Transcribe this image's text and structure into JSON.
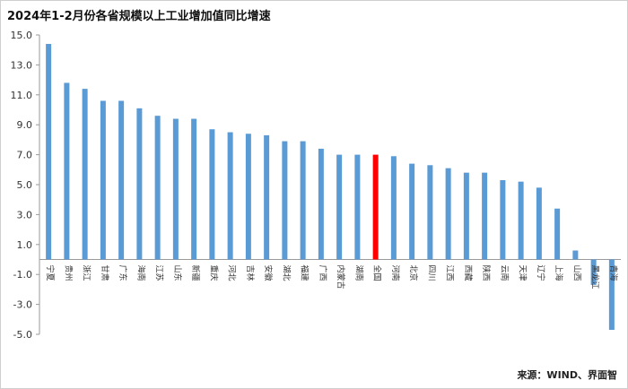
{
  "chart_data": {
    "type": "bar",
    "title": "2024年1-2月份各省规模以上工业增加值同比增速",
    "source": "来源：WIND、界面智",
    "ylim": [
      -5.0,
      15.0
    ],
    "yticks": [
      "15.0",
      "13.0",
      "11.0",
      "9.0",
      "7.0",
      "5.0",
      "3.0",
      "1.0",
      "-1.0",
      "-3.0",
      "-5.0"
    ],
    "grid": false,
    "legend": "none",
    "colors": {
      "default": "#5b9bd5",
      "highlight": "#ff0000"
    },
    "highlight_category": "全国",
    "categories": [
      "宁夏",
      "贵州",
      "浙江",
      "甘肃",
      "广东",
      "海南",
      "江苏",
      "山东",
      "新疆",
      "重庆",
      "河北",
      "吉林",
      "安徽",
      "湖北",
      "福建",
      "广西",
      "内蒙古",
      "湖南",
      "全国",
      "河南",
      "北京",
      "四川",
      "江西",
      "西藏",
      "陕西",
      "云南",
      "天津",
      "辽宁",
      "上海",
      "山西",
      "黑龙江",
      "青海"
    ],
    "values": [
      14.4,
      11.8,
      11.4,
      10.6,
      10.6,
      10.1,
      9.6,
      9.4,
      9.4,
      8.7,
      8.5,
      8.4,
      8.3,
      7.9,
      7.9,
      7.4,
      7.0,
      7.0,
      7.0,
      6.9,
      6.4,
      6.3,
      6.1,
      5.8,
      5.8,
      5.3,
      5.2,
      4.8,
      3.4,
      0.6,
      -1.7,
      -4.7
    ]
  }
}
